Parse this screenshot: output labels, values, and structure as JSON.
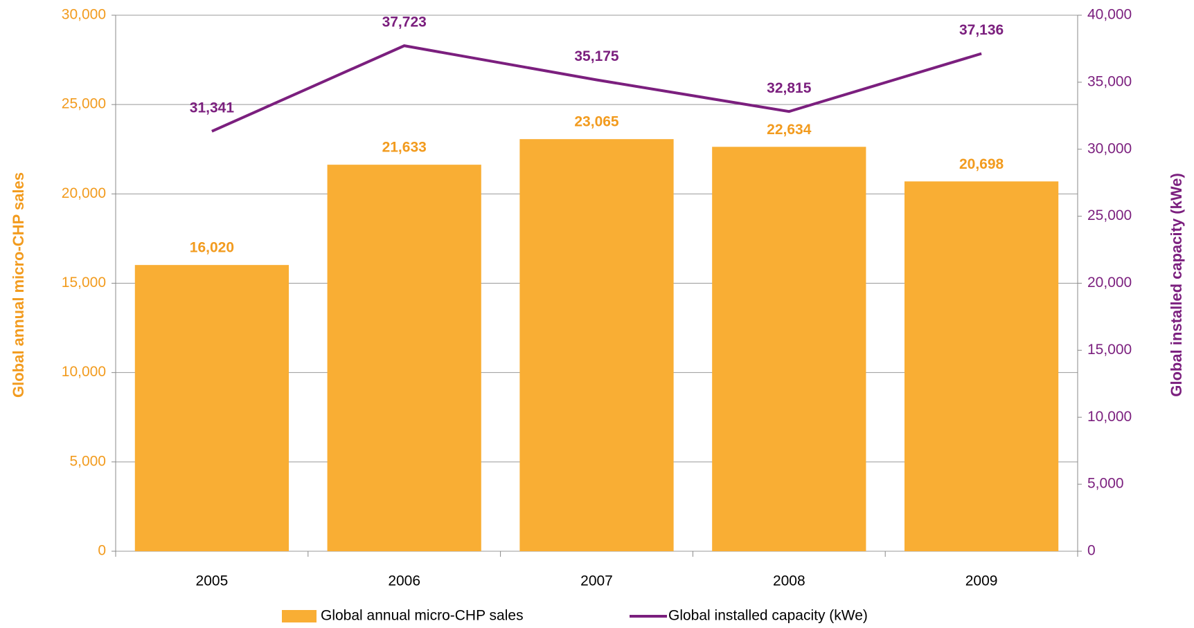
{
  "chart_data": {
    "type": "bar_line",
    "categories": [
      "2005",
      "2006",
      "2007",
      "2008",
      "2009"
    ],
    "series": [
      {
        "name": "Global annual micro-CHP sales",
        "type": "bar",
        "color": "#F9AE34",
        "label_color": "#F29B1E",
        "values": [
          16020,
          21633,
          23065,
          22634,
          20698
        ],
        "value_labels": [
          "16,020",
          "21,633",
          "23,065",
          "22,634",
          "20,698"
        ]
      },
      {
        "name": "Global installed capacity (kWe)",
        "type": "line",
        "axis": "y2",
        "color": "#7B1F7E",
        "label_color": "#7B1F7E",
        "values": [
          31341,
          37723,
          35175,
          32815,
          37136
        ],
        "value_labels": [
          "31,341",
          "37,723",
          "35,175",
          "32,815",
          "37,136"
        ]
      }
    ],
    "ylabel": "Global annual micro-CHP sales",
    "y2label": "Global installed capacity (kWe)",
    "ylim": [
      0,
      30000
    ],
    "yticks": [
      0,
      {
        "value": 5000,
        "label": "5,000"
      },
      {
        "value": 10000,
        "label": "10,000"
      },
      {
        "value": 15000,
        "label": "15,000"
      },
      {
        "value": 20000,
        "label": "20,000"
      },
      {
        "value": 25000,
        "label": "25,000"
      },
      {
        "value": 30000,
        "label": "30,000"
      }
    ],
    "y2lim": [
      0,
      40000
    ],
    "y2ticks": [
      0,
      {
        "value": 5000,
        "label": "5,000"
      },
      {
        "value": 10000,
        "label": "10,000"
      },
      {
        "value": 15000,
        "label": "15,000"
      },
      {
        "value": 20000,
        "label": "20,000"
      },
      {
        "value": 25000,
        "label": "25,000"
      },
      {
        "value": 30000,
        "label": "30,000"
      },
      {
        "value": 35000,
        "label": "35,000"
      },
      {
        "value": 40000,
        "label": "40,000"
      }
    ],
    "grid": true,
    "legend": "bottom"
  }
}
